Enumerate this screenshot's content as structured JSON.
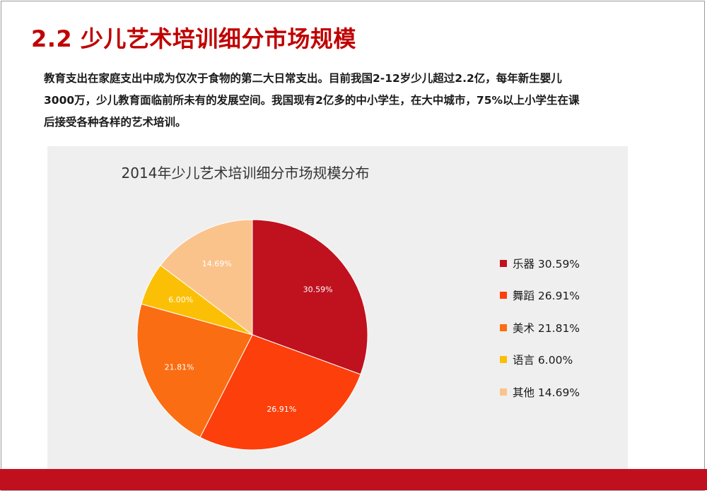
{
  "header": {
    "title": "2.2 少儿艺术培训细分市场规模"
  },
  "intro": {
    "line1": "教育支出在家庭支出中成为仅次于食物的第二大日常支出。目前我国2-12岁少儿超过2.2亿，每年新生婴儿",
    "line2": "3000万，少儿教育面临前所未有的发展空间。我国现有2亿多的中小学生，在大中城市，75%以上小学生在课",
    "line3": "后接受各种各样的艺术培训。"
  },
  "chart_data": {
    "type": "pie",
    "title": "2014年少儿艺术培训细分市场规模分布",
    "unit": "%",
    "categories": [
      "乐器",
      "舞蹈",
      "美术",
      "语言",
      "其他"
    ],
    "values": [
      30.59,
      26.91,
      21.81,
      6.0,
      14.69
    ],
    "data_labels": [
      "30.59%",
      "26.91%",
      "21.81%",
      "6.00%",
      "14.69%"
    ],
    "legend_labels": [
      "乐器 30.59%",
      "舞蹈 26.91%",
      "美术 21.81%",
      "语言 6.00%",
      "其他 14.69%"
    ],
    "colors": [
      "#c0111f",
      "#fd3f0b",
      "#fb6d12",
      "#fbc005",
      "#fbc38c"
    ],
    "legend_position": "right",
    "start_angle": "12 o'clock, clockwise"
  },
  "theme": {
    "title_color": "#c00000",
    "bar_color": "#c0101e",
    "chart_bg": "#efefef"
  }
}
